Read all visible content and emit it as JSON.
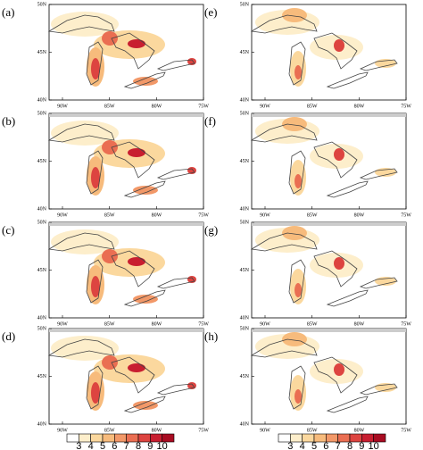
{
  "panels": [
    {
      "label": "(a)"
    },
    {
      "label": "(b)"
    },
    {
      "label": "(c)"
    },
    {
      "label": "(d)"
    },
    {
      "label": "(e)"
    },
    {
      "label": "(f)"
    },
    {
      "label": "(g)"
    },
    {
      "label": "(h)"
    }
  ],
  "axes": {
    "xticks": [
      "90W",
      "85W",
      "80W",
      "75W"
    ],
    "yticks": [
      "50N",
      "45N",
      "40N"
    ]
  },
  "colorbar": {
    "ticks": [
      3,
      4,
      5,
      6,
      7,
      8,
      9,
      10
    ],
    "colors": [
      "#ffffff",
      "#fdeecb",
      "#fbd89e",
      "#f7bb7c",
      "#f29868",
      "#ea6e52",
      "#dd4440",
      "#c81e30",
      "#a80c22"
    ]
  }
}
